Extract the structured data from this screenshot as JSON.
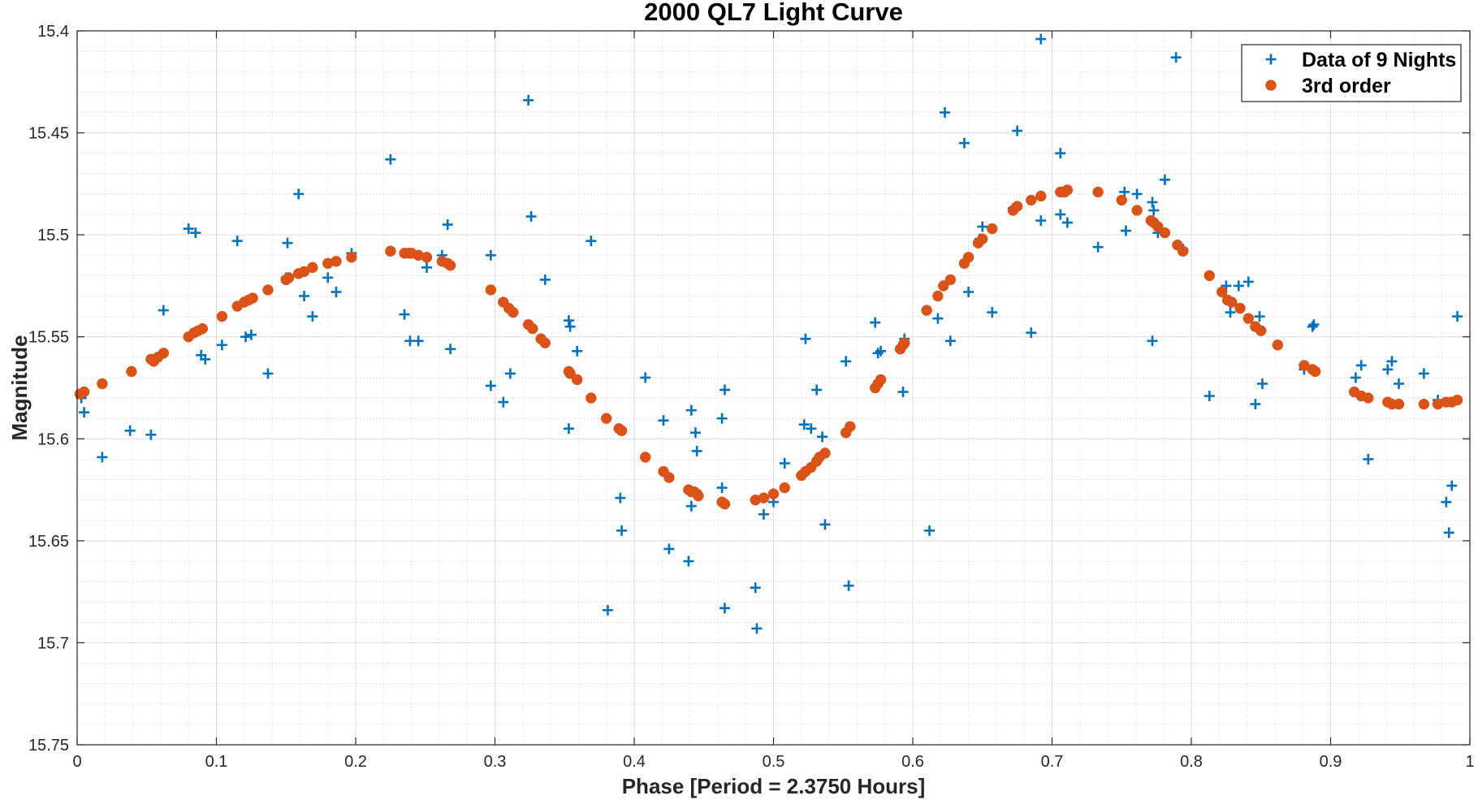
{
  "chart_data": {
    "type": "scatter",
    "title": "2000 QL7 Light Curve",
    "xlabel": "Phase [Period = 2.3750 Hours]",
    "ylabel": "Magnitude",
    "xlim": [
      0,
      1
    ],
    "ylim": [
      15.4,
      15.75
    ],
    "y_reversed": true,
    "grid": true,
    "minor_grid": true,
    "legend_position": "top-right",
    "x_ticks": [
      0,
      0.1,
      0.2,
      0.3,
      0.4,
      0.5,
      0.6,
      0.7,
      0.8,
      0.9,
      1
    ],
    "x_tick_labels": [
      "0",
      "0.1",
      "0.2",
      "0.3",
      "0.4",
      "0.5",
      "0.6",
      "0.7",
      "0.8",
      "0.9",
      "1"
    ],
    "y_ticks": [
      15.4,
      15.45,
      15.5,
      15.55,
      15.6,
      15.65,
      15.7,
      15.75
    ],
    "y_tick_labels": [
      "15.4",
      "15.45",
      "15.5",
      "15.55",
      "15.6",
      "15.65",
      "15.7",
      "15.75"
    ],
    "series": [
      {
        "name": "Data of 9 Nights",
        "marker": "plus",
        "color": "#0072BD",
        "points": [
          [
            0.003,
            15.58
          ],
          [
            0.005,
            15.587
          ],
          [
            0.018,
            15.609
          ],
          [
            0.038,
            15.596
          ],
          [
            0.053,
            15.598
          ],
          [
            0.062,
            15.537
          ],
          [
            0.08,
            15.497
          ],
          [
            0.085,
            15.499
          ],
          [
            0.089,
            15.559
          ],
          [
            0.092,
            15.561
          ],
          [
            0.104,
            15.554
          ],
          [
            0.115,
            15.503
          ],
          [
            0.121,
            15.55
          ],
          [
            0.125,
            15.549
          ],
          [
            0.137,
            15.568
          ],
          [
            0.15,
            15.521
          ],
          [
            0.151,
            15.504
          ],
          [
            0.159,
            15.48
          ],
          [
            0.163,
            15.53
          ],
          [
            0.169,
            15.54
          ],
          [
            0.18,
            15.521
          ],
          [
            0.186,
            15.528
          ],
          [
            0.197,
            15.509
          ],
          [
            0.225,
            15.463
          ],
          [
            0.235,
            15.539
          ],
          [
            0.239,
            15.552
          ],
          [
            0.245,
            15.552
          ],
          [
            0.251,
            15.516
          ],
          [
            0.262,
            15.51
          ],
          [
            0.266,
            15.495
          ],
          [
            0.268,
            15.556
          ],
          [
            0.297,
            15.51
          ],
          [
            0.297,
            15.574
          ],
          [
            0.306,
            15.582
          ],
          [
            0.311,
            15.568
          ],
          [
            0.324,
            15.434
          ],
          [
            0.326,
            15.491
          ],
          [
            0.333,
            15.551
          ],
          [
            0.336,
            15.522
          ],
          [
            0.353,
            15.542
          ],
          [
            0.354,
            15.545
          ],
          [
            0.353,
            15.595
          ],
          [
            0.359,
            15.557
          ],
          [
            0.369,
            15.503
          ],
          [
            0.381,
            15.684
          ],
          [
            0.39,
            15.629
          ],
          [
            0.391,
            15.645
          ],
          [
            0.408,
            15.57
          ],
          [
            0.421,
            15.591
          ],
          [
            0.425,
            15.654
          ],
          [
            0.439,
            15.66
          ],
          [
            0.441,
            15.586
          ],
          [
            0.441,
            15.633
          ],
          [
            0.444,
            15.597
          ],
          [
            0.445,
            15.606
          ],
          [
            0.463,
            15.59
          ],
          [
            0.463,
            15.624
          ],
          [
            0.465,
            15.576
          ],
          [
            0.465,
            15.683
          ],
          [
            0.487,
            15.673
          ],
          [
            0.488,
            15.693
          ],
          [
            0.493,
            15.637
          ],
          [
            0.5,
            15.631
          ],
          [
            0.508,
            15.612
          ],
          [
            0.522,
            15.593
          ],
          [
            0.523,
            15.551
          ],
          [
            0.527,
            15.595
          ],
          [
            0.531,
            15.576
          ],
          [
            0.535,
            15.599
          ],
          [
            0.537,
            15.642
          ],
          [
            0.552,
            15.562
          ],
          [
            0.554,
            15.672
          ],
          [
            0.573,
            15.543
          ],
          [
            0.575,
            15.558
          ],
          [
            0.577,
            15.557
          ],
          [
            0.594,
            15.551
          ],
          [
            0.593,
            15.577
          ],
          [
            0.612,
            15.645
          ],
          [
            0.618,
            15.541
          ],
          [
            0.623,
            15.44
          ],
          [
            0.627,
            15.552
          ],
          [
            0.637,
            15.455
          ],
          [
            0.64,
            15.528
          ],
          [
            0.648,
            15.502
          ],
          [
            0.65,
            15.496
          ],
          [
            0.657,
            15.538
          ],
          [
            0.672,
            15.487
          ],
          [
            0.675,
            15.449
          ],
          [
            0.685,
            15.548
          ],
          [
            0.692,
            15.404
          ],
          [
            0.692,
            15.493
          ],
          [
            0.706,
            15.46
          ],
          [
            0.706,
            15.49
          ],
          [
            0.711,
            15.494
          ],
          [
            0.733,
            15.506
          ],
          [
            0.752,
            15.479
          ],
          [
            0.753,
            15.498
          ],
          [
            0.761,
            15.48
          ],
          [
            0.772,
            15.484
          ],
          [
            0.773,
            15.488
          ],
          [
            0.772,
            15.552
          ],
          [
            0.776,
            15.499
          ],
          [
            0.781,
            15.473
          ],
          [
            0.789,
            15.413
          ],
          [
            0.791,
            15.505
          ],
          [
            0.794,
            15.507
          ],
          [
            0.813,
            15.579
          ],
          [
            0.825,
            15.525
          ],
          [
            0.828,
            15.538
          ],
          [
            0.834,
            15.525
          ],
          [
            0.841,
            15.523
          ],
          [
            0.846,
            15.583
          ],
          [
            0.849,
            15.54
          ],
          [
            0.851,
            15.573
          ],
          [
            0.881,
            15.566
          ],
          [
            0.887,
            15.545
          ],
          [
            0.888,
            15.544
          ],
          [
            0.918,
            15.57
          ],
          [
            0.922,
            15.564
          ],
          [
            0.927,
            15.61
          ],
          [
            0.941,
            15.566
          ],
          [
            0.944,
            15.562
          ],
          [
            0.949,
            15.573
          ],
          [
            0.967,
            15.568
          ],
          [
            0.977,
            15.581
          ],
          [
            0.983,
            15.631
          ],
          [
            0.985,
            15.646
          ],
          [
            0.987,
            15.623
          ],
          [
            0.991,
            15.54
          ]
        ]
      },
      {
        "name": "3rd order",
        "marker": "circle",
        "color": "#D95319",
        "points": [
          [
            0.002,
            15.578
          ],
          [
            0.005,
            15.577
          ],
          [
            0.018,
            15.573
          ],
          [
            0.039,
            15.567
          ],
          [
            0.053,
            15.561
          ],
          [
            0.055,
            15.562
          ],
          [
            0.058,
            15.56
          ],
          [
            0.062,
            15.558
          ],
          [
            0.08,
            15.55
          ],
          [
            0.084,
            15.548
          ],
          [
            0.087,
            15.547
          ],
          [
            0.09,
            15.546
          ],
          [
            0.104,
            15.54
          ],
          [
            0.115,
            15.535
          ],
          [
            0.12,
            15.533
          ],
          [
            0.123,
            15.532
          ],
          [
            0.126,
            15.531
          ],
          [
            0.137,
            15.527
          ],
          [
            0.15,
            15.522
          ],
          [
            0.152,
            15.521
          ],
          [
            0.159,
            15.519
          ],
          [
            0.163,
            15.518
          ],
          [
            0.169,
            15.516
          ],
          [
            0.18,
            15.514
          ],
          [
            0.186,
            15.513
          ],
          [
            0.197,
            15.511
          ],
          [
            0.225,
            15.508
          ],
          [
            0.235,
            15.509
          ],
          [
            0.238,
            15.509
          ],
          [
            0.24,
            15.509
          ],
          [
            0.245,
            15.51
          ],
          [
            0.251,
            15.511
          ],
          [
            0.262,
            15.513
          ],
          [
            0.266,
            15.514
          ],
          [
            0.268,
            15.515
          ],
          [
            0.297,
            15.527
          ],
          [
            0.306,
            15.533
          ],
          [
            0.31,
            15.536
          ],
          [
            0.313,
            15.538
          ],
          [
            0.324,
            15.544
          ],
          [
            0.327,
            15.546
          ],
          [
            0.333,
            15.551
          ],
          [
            0.336,
            15.553
          ],
          [
            0.353,
            15.567
          ],
          [
            0.354,
            15.568
          ],
          [
            0.359,
            15.571
          ],
          [
            0.369,
            15.58
          ],
          [
            0.38,
            15.59
          ],
          [
            0.389,
            15.595
          ],
          [
            0.391,
            15.596
          ],
          [
            0.408,
            15.609
          ],
          [
            0.421,
            15.616
          ],
          [
            0.425,
            15.619
          ],
          [
            0.439,
            15.625
          ],
          [
            0.441,
            15.626
          ],
          [
            0.443,
            15.626
          ],
          [
            0.445,
            15.627
          ],
          [
            0.446,
            15.628
          ],
          [
            0.463,
            15.631
          ],
          [
            0.465,
            15.632
          ],
          [
            0.487,
            15.63
          ],
          [
            0.493,
            15.629
          ],
          [
            0.5,
            15.627
          ],
          [
            0.508,
            15.624
          ],
          [
            0.52,
            15.618
          ],
          [
            0.523,
            15.616
          ],
          [
            0.527,
            15.614
          ],
          [
            0.531,
            15.611
          ],
          [
            0.533,
            15.609
          ],
          [
            0.537,
            15.607
          ],
          [
            0.552,
            15.597
          ],
          [
            0.555,
            15.594
          ],
          [
            0.573,
            15.575
          ],
          [
            0.575,
            15.573
          ],
          [
            0.577,
            15.571
          ],
          [
            0.591,
            15.556
          ],
          [
            0.593,
            15.554
          ],
          [
            0.594,
            15.553
          ],
          [
            0.61,
            15.537
          ],
          [
            0.618,
            15.53
          ],
          [
            0.622,
            15.525
          ],
          [
            0.627,
            15.522
          ],
          [
            0.637,
            15.514
          ],
          [
            0.64,
            15.511
          ],
          [
            0.647,
            15.504
          ],
          [
            0.65,
            15.502
          ],
          [
            0.657,
            15.497
          ],
          [
            0.672,
            15.488
          ],
          [
            0.675,
            15.486
          ],
          [
            0.685,
            15.483
          ],
          [
            0.692,
            15.481
          ],
          [
            0.706,
            15.479
          ],
          [
            0.709,
            15.479
          ],
          [
            0.711,
            15.478
          ],
          [
            0.733,
            15.479
          ],
          [
            0.75,
            15.483
          ],
          [
            0.761,
            15.488
          ],
          [
            0.771,
            15.493
          ],
          [
            0.773,
            15.494
          ],
          [
            0.776,
            15.496
          ],
          [
            0.781,
            15.499
          ],
          [
            0.79,
            15.505
          ],
          [
            0.794,
            15.508
          ],
          [
            0.813,
            15.52
          ],
          [
            0.822,
            15.528
          ],
          [
            0.826,
            15.532
          ],
          [
            0.829,
            15.533
          ],
          [
            0.835,
            15.536
          ],
          [
            0.841,
            15.541
          ],
          [
            0.846,
            15.545
          ],
          [
            0.85,
            15.547
          ],
          [
            0.862,
            15.554
          ],
          [
            0.881,
            15.564
          ],
          [
            0.887,
            15.566
          ],
          [
            0.889,
            15.567
          ],
          [
            0.917,
            15.577
          ],
          [
            0.922,
            15.579
          ],
          [
            0.927,
            15.58
          ],
          [
            0.941,
            15.582
          ],
          [
            0.944,
            15.583
          ],
          [
            0.949,
            15.583
          ],
          [
            0.967,
            15.583
          ],
          [
            0.977,
            15.583
          ],
          [
            0.983,
            15.582
          ],
          [
            0.987,
            15.582
          ],
          [
            0.991,
            15.581
          ]
        ]
      }
    ]
  }
}
